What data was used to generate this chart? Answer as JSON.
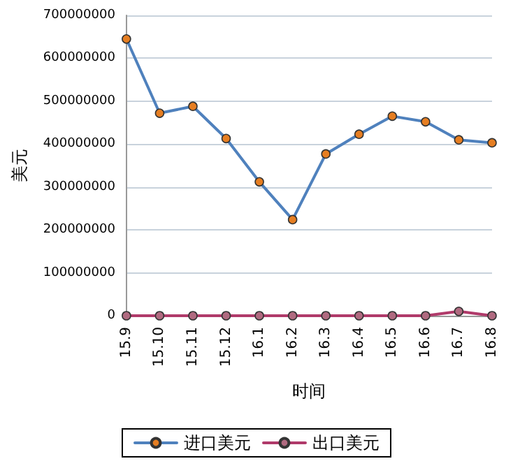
{
  "chart_data": {
    "type": "line",
    "xlabel": "时间",
    "ylabel": "美元",
    "categories": [
      "15.9",
      "15.10",
      "15.11",
      "15.12",
      "16.1",
      "16.2",
      "16.3",
      "16.4",
      "16.5",
      "16.6",
      "16.7",
      "16.8"
    ],
    "series": [
      {
        "name": "进口美元",
        "color": "#4f81bd",
        "colors": [
          "#e67e22",
          "#e67e22",
          "#e67e22",
          "#e67e22",
          "#e67e22",
          "#e67e22",
          "#e67e22",
          "#e67e22",
          "#e67e22",
          "#e67e22",
          "#e67e22",
          "#e67e22"
        ],
        "values": [
          645000000,
          472000000,
          488000000,
          413000000,
          312000000,
          224000000,
          377000000,
          423000000,
          465000000,
          452000000,
          410000000,
          403000000
        ]
      },
      {
        "name": "出口美元",
        "color": "#b03a6a",
        "colors": [
          "#b06a80",
          "#b06a80",
          "#b06a80",
          "#b06a80",
          "#b06a80",
          "#b06a80",
          "#b06a80",
          "#b06a80",
          "#b06a80",
          "#b06a80",
          "#b06a80",
          "#b06a80"
        ],
        "values": [
          0,
          0,
          0,
          0,
          0,
          0,
          0,
          0,
          0,
          0,
          10000000,
          0
        ]
      }
    ],
    "ylim": [
      0,
      700000000
    ],
    "yticks": [
      0,
      100000000,
      200000000,
      300000000,
      400000000,
      500000000,
      600000000,
      700000000
    ],
    "grid": "y",
    "legend": "bottom",
    "marker": "circle",
    "line_style": "solid"
  }
}
